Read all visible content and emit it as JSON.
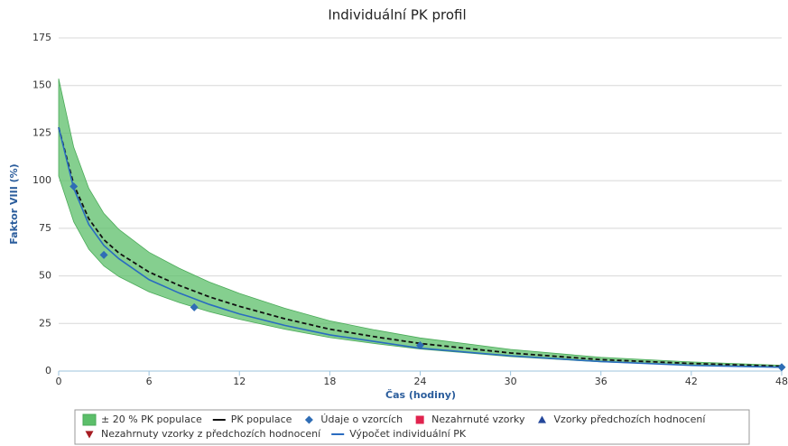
{
  "chart_data": {
    "type": "line",
    "title": "Individuální PK profil",
    "x_label": "Čas (hodiny)",
    "y_label": "Faktor VIII (%)",
    "xlim": [
      0,
      48
    ],
    "xticks": [
      0,
      6,
      12,
      18,
      24,
      30,
      36,
      42,
      48
    ],
    "ylim": [
      0,
      175
    ],
    "yticks": [
      0,
      25,
      50,
      75,
      100,
      125,
      150,
      175
    ],
    "grid": true,
    "series": [
      {
        "name": "± 20 % PK populace",
        "type": "range",
        "color": "#5cbf6a",
        "x": [
          0,
          1,
          2,
          3,
          4,
          6,
          8,
          10,
          12,
          15,
          18,
          21,
          24,
          30,
          36,
          42,
          48
        ],
        "lower": [
          102.4,
          78.4,
          64,
          55.2,
          49.6,
          41.6,
          36,
          31.2,
          27.2,
          22,
          17.6,
          14.4,
          11.6,
          7.6,
          4.8,
          3.2,
          2
        ],
        "upper": [
          153.6,
          117.6,
          96,
          82.8,
          74.4,
          62.4,
          54,
          46.8,
          40.8,
          33,
          26.4,
          21.6,
          17.4,
          11.4,
          7.2,
          4.8,
          3
        ]
      },
      {
        "name": "PK populace",
        "type": "line",
        "dashed": true,
        "color": "#111111",
        "x": [
          0,
          1,
          2,
          3,
          4,
          6,
          8,
          10,
          12,
          15,
          18,
          21,
          24,
          30,
          36,
          42,
          48
        ],
        "values": [
          128,
          98,
          80,
          69,
          62,
          52,
          45,
          39,
          34,
          27.5,
          22,
          18,
          14.5,
          9.5,
          6,
          4,
          2.5
        ]
      },
      {
        "name": "Údaje o vzorcích",
        "type": "scatter",
        "marker": "diamond",
        "color": "#2f6db5",
        "x": [
          1,
          3,
          9,
          24,
          48
        ],
        "values": [
          97,
          61,
          33.5,
          13.5,
          2
        ]
      },
      {
        "name": "Nezahrnuté vzorky",
        "type": "scatter",
        "marker": "square",
        "color": "#e0234e",
        "x": [],
        "values": []
      },
      {
        "name": "Vzorky předchozích hodnocení",
        "type": "scatter",
        "marker": "triangle",
        "color": "#24479b",
        "x": [],
        "values": []
      },
      {
        "name": "Nezahrnuty vzorky z předchozích hodnocení",
        "type": "scatter",
        "marker": "triangle-down",
        "color": "#a61c22",
        "x": [],
        "values": []
      },
      {
        "name": "Výpočet individuální PK",
        "type": "line",
        "dashed": false,
        "color": "#2a6cc0",
        "x": [
          0,
          1,
          2,
          3,
          4,
          6,
          8,
          10,
          12,
          15,
          18,
          21,
          24,
          30,
          36,
          42,
          48
        ],
        "values": [
          128,
          96,
          77,
          66,
          59,
          48,
          41,
          35,
          30,
          24,
          19,
          15.5,
          12,
          8,
          5,
          3,
          2
        ]
      }
    ]
  }
}
